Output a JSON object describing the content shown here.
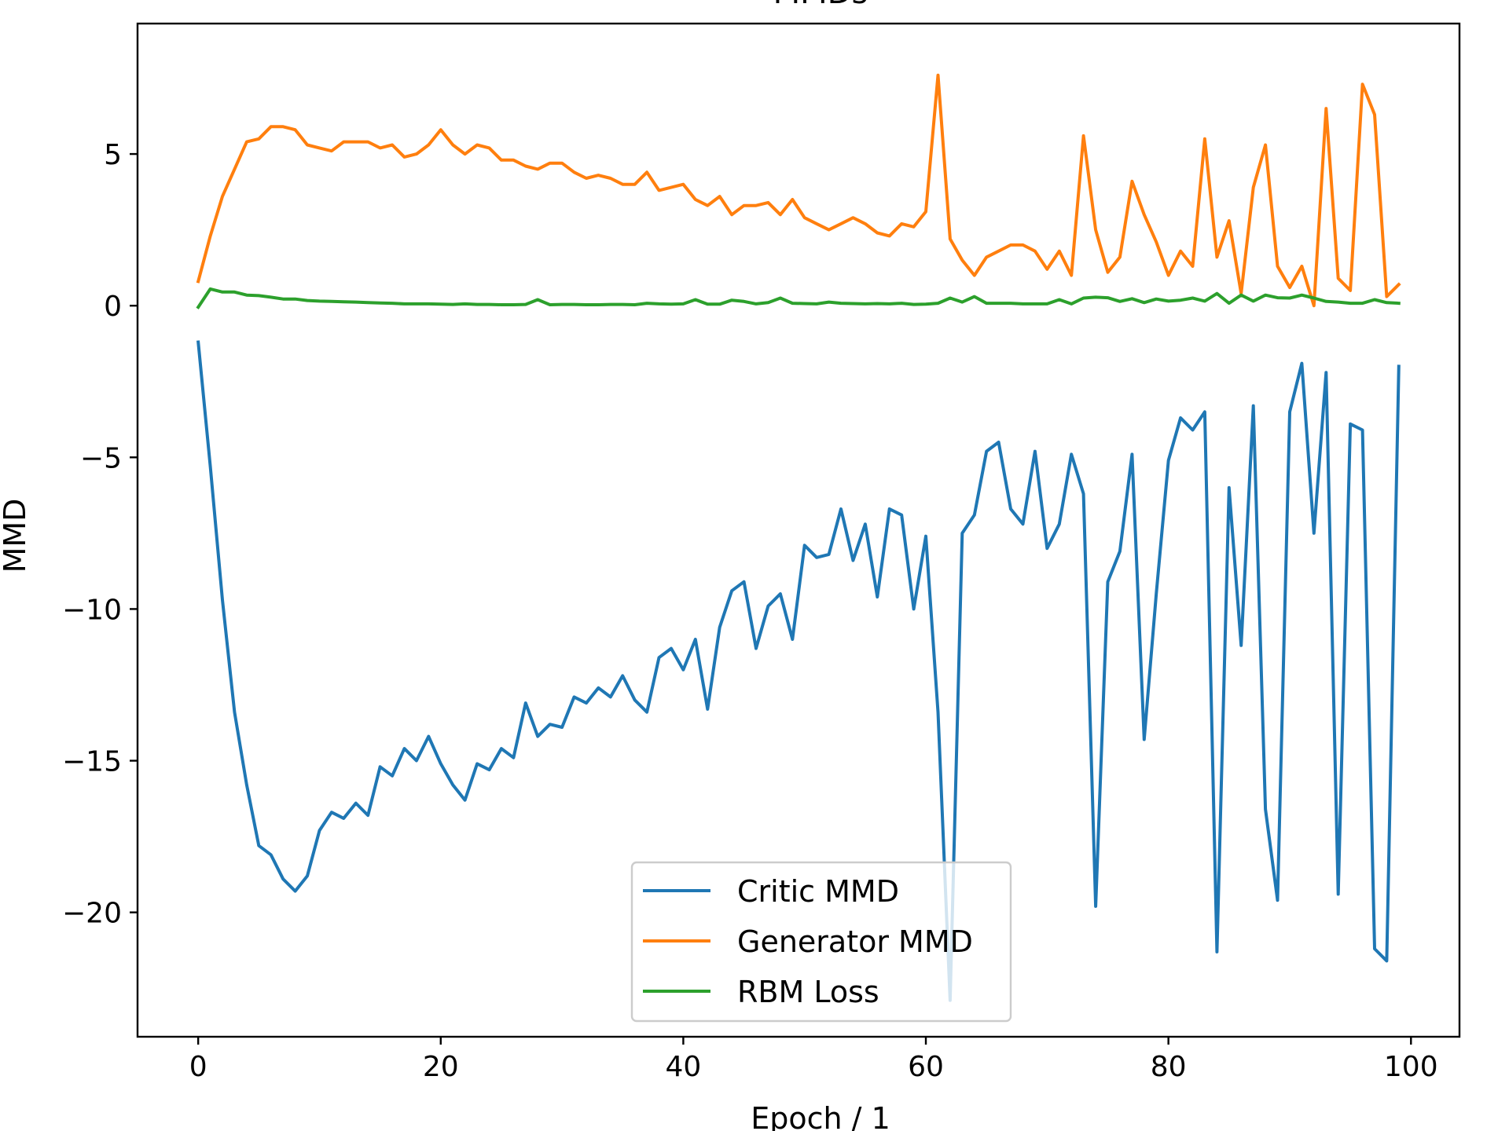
{
  "chart_data": {
    "type": "line",
    "title": "MMDs",
    "xlabel": "Epoch / 1",
    "ylabel": "MMD",
    "xlim": [
      -5,
      104
    ],
    "ylim": [
      -24.1,
      9.3
    ],
    "xticks": [
      0,
      20,
      40,
      60,
      80,
      100
    ],
    "yticks": [
      5,
      0,
      -5,
      -10,
      -15,
      -20
    ],
    "ytick_labels": [
      "5",
      "0",
      "−5",
      "−10",
      "−15",
      "−20"
    ],
    "grid": false,
    "legend_position": "lower-center",
    "series": [
      {
        "name": "Critic MMD",
        "color": "#1f77b4",
        "x": [
          0,
          1,
          2,
          3,
          4,
          5,
          6,
          7,
          8,
          9,
          10,
          11,
          12,
          13,
          14,
          15,
          16,
          17,
          18,
          19,
          20,
          21,
          22,
          23,
          24,
          25,
          26,
          27,
          28,
          29,
          30,
          31,
          32,
          33,
          34,
          35,
          36,
          37,
          38,
          39,
          40,
          41,
          42,
          43,
          44,
          45,
          46,
          47,
          48,
          49,
          50,
          51,
          52,
          53,
          54,
          55,
          56,
          57,
          58,
          59,
          60,
          61,
          62,
          63,
          64,
          65,
          66,
          67,
          68,
          69,
          70,
          71,
          72,
          73,
          74,
          75,
          76,
          77,
          78,
          79,
          80,
          81,
          82,
          83,
          84,
          85,
          86,
          87,
          88,
          89,
          90,
          91,
          92,
          93,
          94,
          95,
          96,
          97,
          98,
          99
        ],
        "values": [
          -1.2,
          -5.3,
          -9.7,
          -13.4,
          -15.8,
          -17.8,
          -18.1,
          -18.9,
          -19.3,
          -18.8,
          -17.3,
          -16.7,
          -16.9,
          -16.4,
          -16.8,
          -15.2,
          -15.5,
          -14.6,
          -15.0,
          -14.2,
          -15.1,
          -15.8,
          -16.3,
          -15.1,
          -15.3,
          -14.6,
          -14.9,
          -13.1,
          -14.2,
          -13.8,
          -13.9,
          -12.9,
          -13.1,
          -12.6,
          -12.9,
          -12.2,
          -13.0,
          -13.4,
          -11.6,
          -11.3,
          -12.0,
          -11.0,
          -13.3,
          -10.6,
          -9.4,
          -9.1,
          -11.3,
          -9.9,
          -9.5,
          -11.0,
          -7.9,
          -8.3,
          -8.2,
          -6.7,
          -8.4,
          -7.2,
          -9.6,
          -6.7,
          -6.9,
          -10.0,
          -7.6,
          -13.4,
          -22.9,
          -7.5,
          -6.9,
          -4.8,
          -4.5,
          -6.7,
          -7.2,
          -4.8,
          -8.0,
          -7.2,
          -4.9,
          -6.2,
          -19.8,
          -9.1,
          -8.1,
          -4.9,
          -14.3,
          -9.5,
          -5.1,
          -3.7,
          -4.1,
          -3.5,
          -21.3,
          -6.0,
          -11.2,
          -3.3,
          -16.6,
          -19.6,
          -3.5,
          -1.9,
          -7.5,
          -2.2,
          -19.4,
          -3.9,
          -4.1,
          -21.2,
          -21.6,
          -2.0
        ]
      },
      {
        "name": "Generator MMD",
        "color": "#ff7f0e",
        "x": [
          0,
          1,
          2,
          3,
          4,
          5,
          6,
          7,
          8,
          9,
          10,
          11,
          12,
          13,
          14,
          15,
          16,
          17,
          18,
          19,
          20,
          21,
          22,
          23,
          24,
          25,
          26,
          27,
          28,
          29,
          30,
          31,
          32,
          33,
          34,
          35,
          36,
          37,
          38,
          39,
          40,
          41,
          42,
          43,
          44,
          45,
          46,
          47,
          48,
          49,
          50,
          51,
          52,
          53,
          54,
          55,
          56,
          57,
          58,
          59,
          60,
          61,
          62,
          63,
          64,
          65,
          66,
          67,
          68,
          69,
          70,
          71,
          72,
          73,
          74,
          75,
          76,
          77,
          78,
          79,
          80,
          81,
          82,
          83,
          84,
          85,
          86,
          87,
          88,
          89,
          90,
          91,
          92,
          93,
          94,
          95,
          96,
          97,
          98,
          99
        ],
        "values": [
          0.8,
          2.3,
          3.6,
          4.5,
          5.4,
          5.5,
          5.9,
          5.9,
          5.8,
          5.3,
          5.2,
          5.1,
          5.4,
          5.4,
          5.4,
          5.2,
          5.3,
          4.9,
          5.0,
          5.3,
          5.8,
          5.3,
          5.0,
          5.3,
          5.2,
          4.8,
          4.8,
          4.6,
          4.5,
          4.7,
          4.7,
          4.4,
          4.2,
          4.3,
          4.2,
          4.0,
          4.0,
          4.4,
          3.8,
          3.9,
          4.0,
          3.5,
          3.3,
          3.6,
          3.0,
          3.3,
          3.3,
          3.4,
          3.0,
          3.5,
          2.9,
          2.7,
          2.5,
          2.7,
          2.9,
          2.7,
          2.4,
          2.3,
          2.7,
          2.6,
          3.1,
          7.6,
          2.2,
          1.5,
          1.0,
          1.6,
          1.8,
          2.0,
          2.0,
          1.8,
          1.2,
          1.8,
          1.0,
          5.6,
          2.5,
          1.1,
          1.6,
          4.1,
          3.0,
          2.1,
          1.0,
          1.8,
          1.3,
          5.5,
          1.6,
          2.8,
          0.4,
          3.9,
          5.3,
          1.3,
          0.6,
          1.3,
          0.0,
          6.5,
          0.9,
          0.5,
          7.3,
          6.3,
          0.3,
          0.7
        ]
      },
      {
        "name": "RBM Loss",
        "color": "#2ca02c",
        "x": [
          0,
          1,
          2,
          3,
          4,
          5,
          6,
          7,
          8,
          9,
          10,
          11,
          12,
          13,
          14,
          15,
          16,
          17,
          18,
          19,
          20,
          21,
          22,
          23,
          24,
          25,
          26,
          27,
          28,
          29,
          30,
          31,
          32,
          33,
          34,
          35,
          36,
          37,
          38,
          39,
          40,
          41,
          42,
          43,
          44,
          45,
          46,
          47,
          48,
          49,
          50,
          51,
          52,
          53,
          54,
          55,
          56,
          57,
          58,
          59,
          60,
          61,
          62,
          63,
          64,
          65,
          66,
          67,
          68,
          69,
          70,
          71,
          72,
          73,
          74,
          75,
          76,
          77,
          78,
          79,
          80,
          81,
          82,
          83,
          84,
          85,
          86,
          87,
          88,
          89,
          90,
          91,
          92,
          93,
          94,
          95,
          96,
          97,
          98,
          99
        ],
        "values": [
          -0.05,
          0.55,
          0.45,
          0.45,
          0.35,
          0.33,
          0.28,
          0.22,
          0.22,
          0.17,
          0.15,
          0.14,
          0.13,
          0.12,
          0.1,
          0.09,
          0.08,
          0.06,
          0.06,
          0.06,
          0.05,
          0.04,
          0.06,
          0.04,
          0.04,
          0.03,
          0.03,
          0.04,
          0.2,
          0.03,
          0.04,
          0.04,
          0.03,
          0.03,
          0.04,
          0.04,
          0.03,
          0.08,
          0.06,
          0.05,
          0.06,
          0.2,
          0.05,
          0.05,
          0.18,
          0.14,
          0.06,
          0.1,
          0.25,
          0.08,
          0.07,
          0.06,
          0.12,
          0.08,
          0.07,
          0.06,
          0.07,
          0.06,
          0.08,
          0.04,
          0.05,
          0.08,
          0.25,
          0.12,
          0.3,
          0.08,
          0.08,
          0.08,
          0.06,
          0.06,
          0.06,
          0.2,
          0.06,
          0.25,
          0.28,
          0.26,
          0.14,
          0.23,
          0.1,
          0.22,
          0.15,
          0.18,
          0.25,
          0.15,
          0.4,
          0.08,
          0.35,
          0.15,
          0.35,
          0.26,
          0.25,
          0.35,
          0.25,
          0.14,
          0.12,
          0.08,
          0.08,
          0.2,
          0.1,
          0.08
        ]
      }
    ]
  }
}
